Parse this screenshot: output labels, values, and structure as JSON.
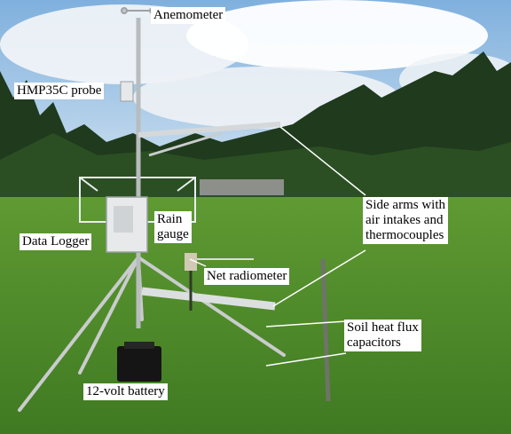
{
  "labels": {
    "anemometer": "Anemometer",
    "hmp35c": "HMP35C probe",
    "rain_gauge": "Rain\ngauge",
    "side_arms": "Side arms with\nair intakes and\nthermocouples",
    "data_logger": "Data Logger",
    "net_radiometer": "Net radiometer",
    "soil_heat_flux": "Soil heat flux\ncapacitors",
    "battery": "12-volt battery"
  },
  "colors": {
    "sky": "#a9c9e8",
    "forest": "#1f3a1d",
    "grass": "#5f9a33",
    "label_bg": "#ffffff",
    "leader": "#ffffff"
  }
}
